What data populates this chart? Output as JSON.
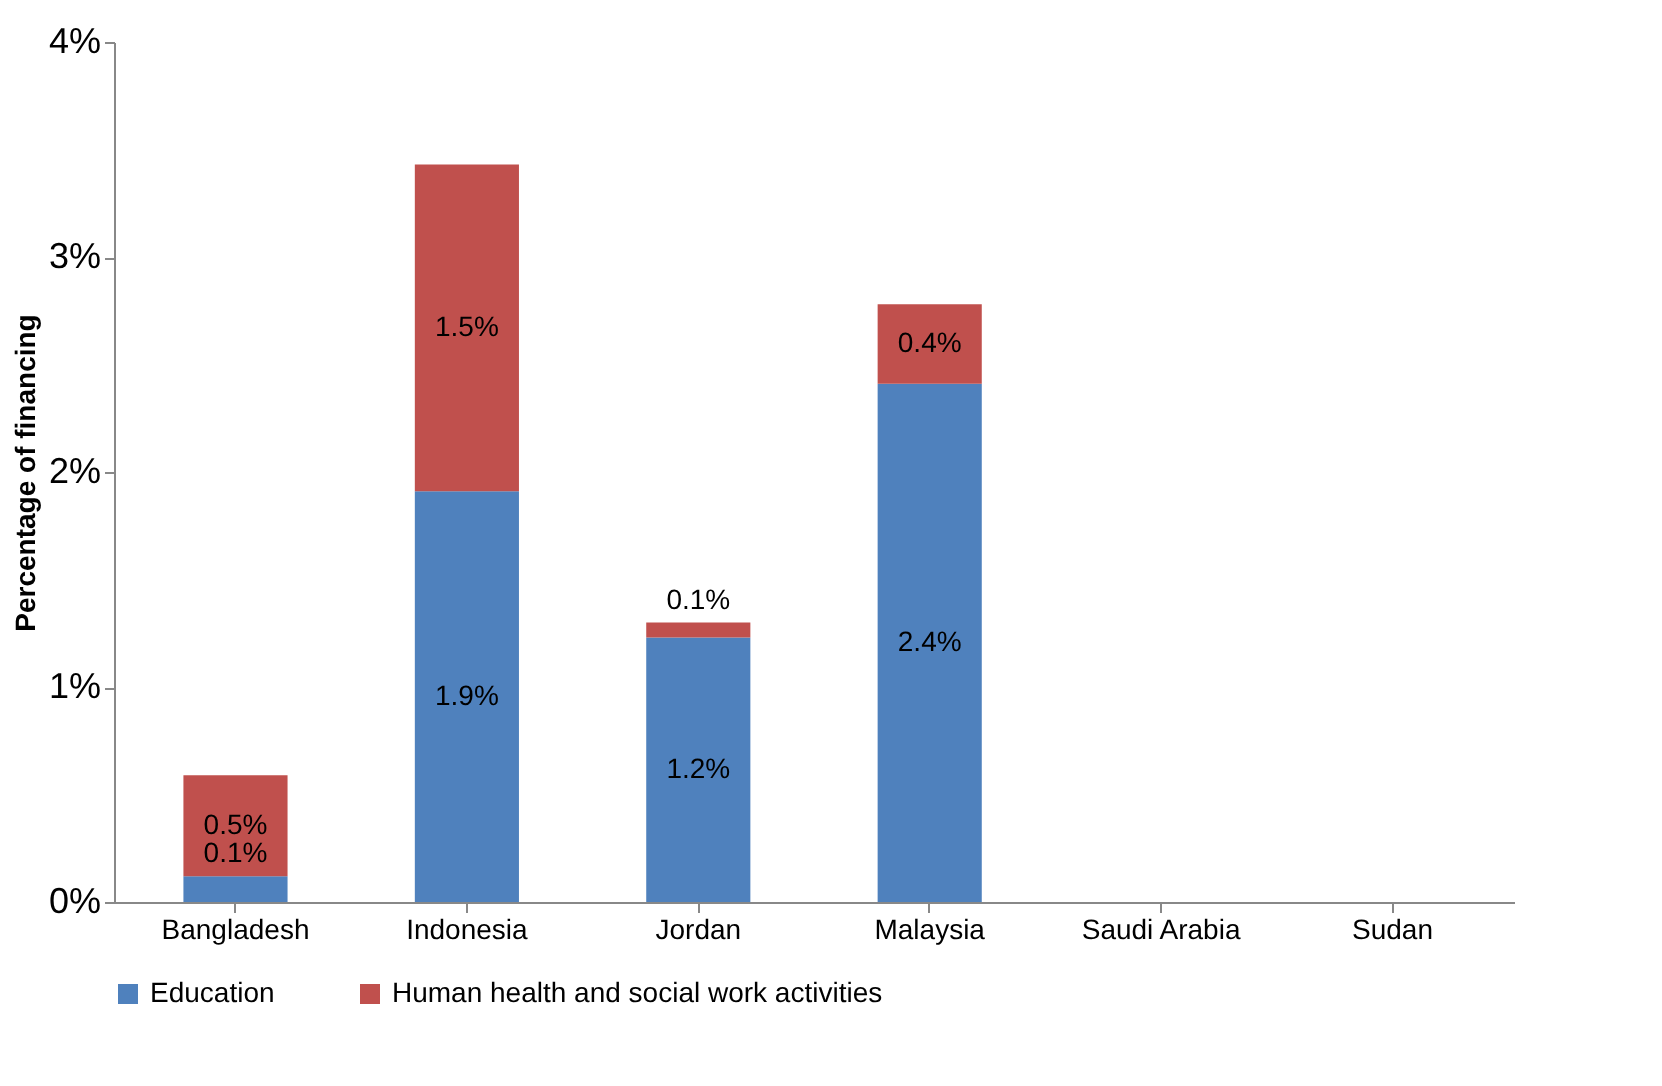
{
  "chart_data": {
    "type": "bar",
    "stacked": true,
    "ylabel": "Percentage of financing",
    "categories": [
      "Bangladesh",
      "Indonesia",
      "Jordan",
      "Malaysia",
      "Saudi Arabia",
      "Sudan"
    ],
    "series": [
      {
        "name": "Education",
        "color": "#4f81bd",
        "values": [
          0.12,
          1.91,
          1.23,
          2.41,
          0,
          0
        ],
        "value_labels": [
          "0.1%",
          "1.9%",
          "1.2%",
          "2.4%",
          null,
          null
        ]
      },
      {
        "name": "Human health and social work activities",
        "color": "#c0504d",
        "values": [
          0.47,
          1.52,
          0.07,
          0.37,
          0,
          0
        ],
        "value_labels": [
          "0.5%",
          "1.5%",
          "0.1%",
          "0.4%",
          null,
          null
        ]
      }
    ],
    "ylim": [
      0,
      4
    ],
    "yticks": [
      {
        "value": 0,
        "label": "0%"
      },
      {
        "value": 1,
        "label": "1%"
      },
      {
        "value": 2,
        "label": "2%"
      },
      {
        "value": 3,
        "label": "3%"
      },
      {
        "value": 4,
        "label": "4%"
      }
    ],
    "grid": false,
    "legend": "bottom"
  }
}
